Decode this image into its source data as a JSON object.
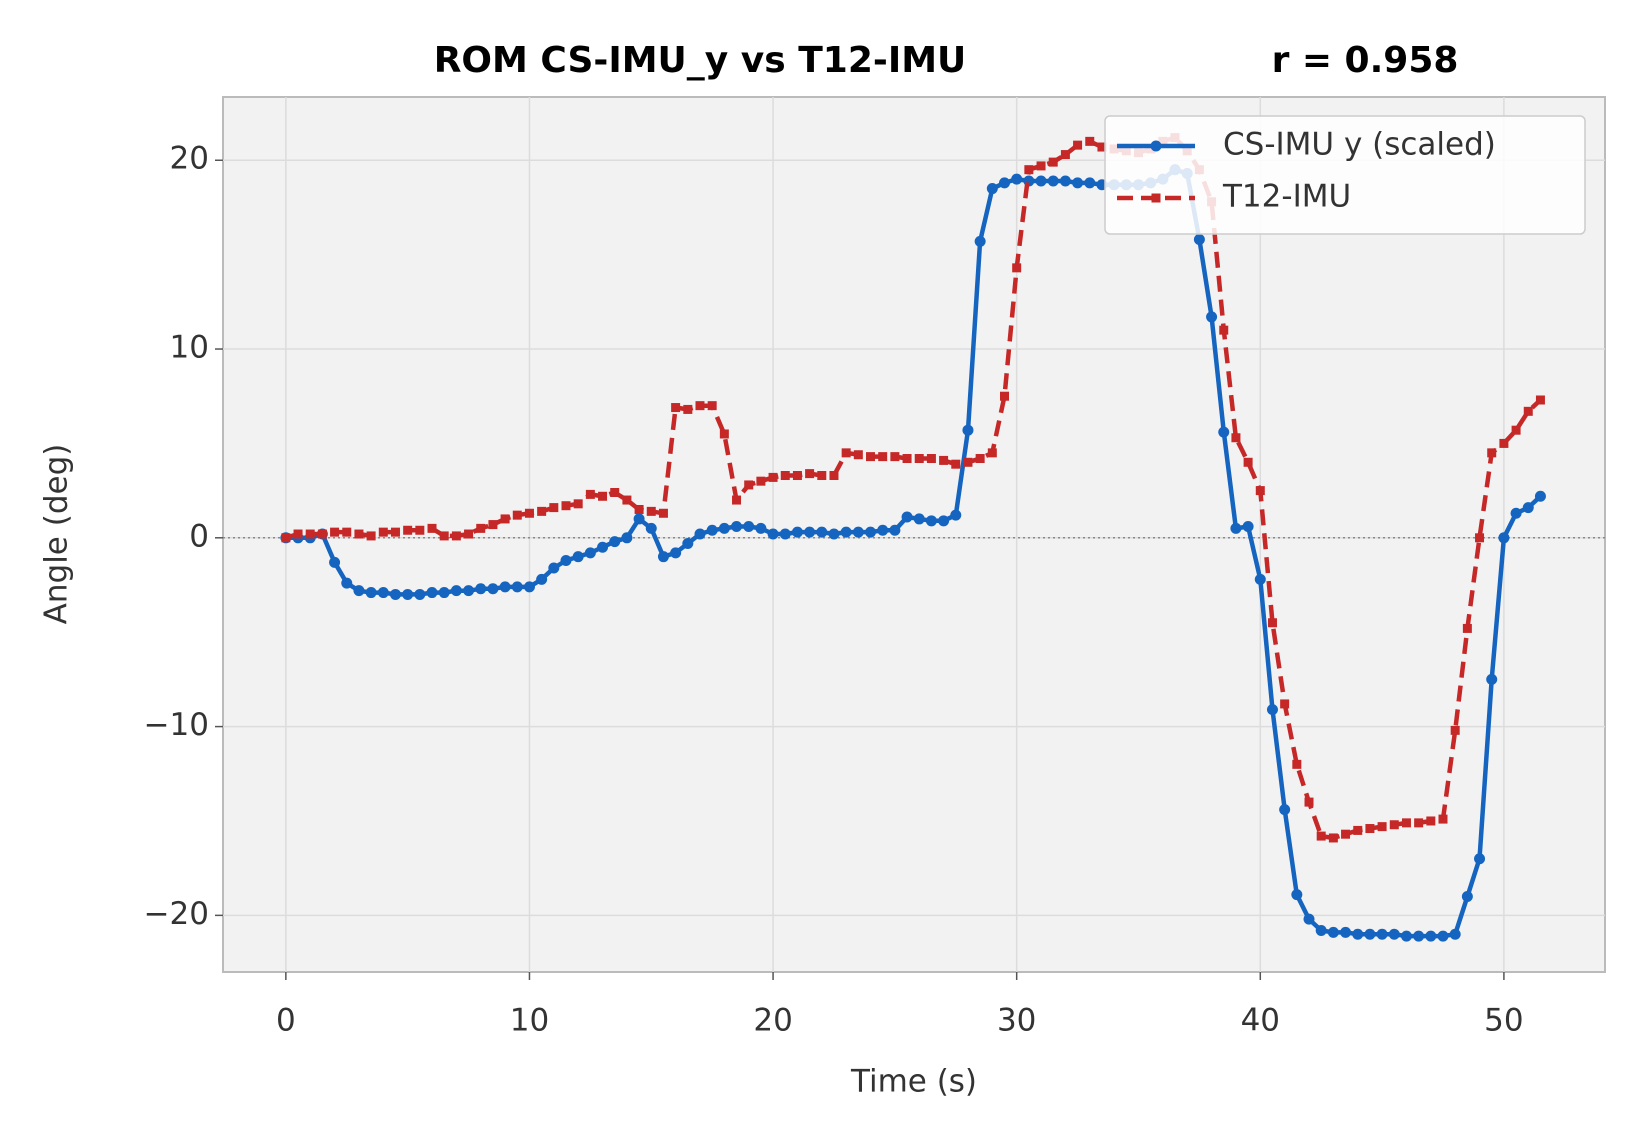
{
  "chart_data": {
    "type": "line",
    "title": "ROM  CS-IMU_y vs T12-IMU",
    "annotation": "r = 0.958",
    "xlabel": "Time (s)",
    "ylabel": "Angle (deg)",
    "x": [
      0,
      0.5,
      1,
      1.5,
      2,
      2.5,
      3,
      3.5,
      4,
      4.5,
      5,
      5.5,
      6,
      6.5,
      7,
      7.5,
      8,
      8.5,
      9,
      9.5,
      10,
      10.5,
      11,
      11.5,
      12,
      12.5,
      13,
      13.5,
      14,
      14.5,
      15,
      15.5,
      16,
      16.5,
      17,
      17.5,
      18,
      18.5,
      19,
      19.5,
      20,
      20.5,
      21,
      21.5,
      22,
      22.5,
      23,
      23.5,
      24,
      24.5,
      25,
      25.5,
      26,
      26.5,
      27,
      27.5,
      28,
      28.5,
      29,
      29.5,
      30,
      30.5,
      31,
      31.5,
      32,
      32.5,
      33,
      33.5,
      34,
      34.5,
      35,
      35.5,
      36,
      36.5,
      37,
      37.5,
      38,
      38.5,
      39,
      39.5,
      40,
      40.5,
      41,
      41.5,
      42,
      42.5,
      43,
      43.5,
      44,
      44.5,
      45,
      45.5,
      46,
      46.5,
      47,
      47.5,
      48,
      48.5,
      49,
      49.5,
      50,
      50.5,
      51,
      51.5
    ],
    "series": [
      {
        "name": "CS-IMU y (scaled)",
        "color": "#1565c0",
        "marker": "circle",
        "dash": false,
        "values": [
          0,
          0,
          0,
          0.2,
          -1.3,
          -2.4,
          -2.8,
          -2.9,
          -2.9,
          -3.0,
          -3.0,
          -3.0,
          -2.9,
          -2.9,
          -2.8,
          -2.8,
          -2.7,
          -2.7,
          -2.6,
          -2.6,
          -2.6,
          -2.2,
          -1.6,
          -1.2,
          -1.0,
          -0.8,
          -0.5,
          -0.2,
          0,
          1.0,
          0.5,
          -1.0,
          -0.8,
          -0.3,
          0.2,
          0.4,
          0.5,
          0.6,
          0.6,
          0.5,
          0.2,
          0.2,
          0.3,
          0.3,
          0.3,
          0.2,
          0.3,
          0.3,
          0.3,
          0.4,
          0.4,
          1.1,
          1.0,
          0.9,
          0.9,
          1.2,
          5.7,
          15.7,
          18.5,
          18.8,
          19.0,
          18.9,
          18.9,
          18.9,
          18.9,
          18.8,
          18.8,
          18.7,
          18.7,
          18.7,
          18.7,
          18.8,
          19.0,
          19.5,
          19.3,
          15.8,
          11.7,
          5.6,
          0.5,
          0.6,
          -2.2,
          -9.1,
          -14.4,
          -18.9,
          -20.2,
          -20.8,
          -20.9,
          -20.9,
          -21.0,
          -21.0,
          -21.0,
          -21.0,
          -21.1,
          -21.1,
          -21.1,
          -21.1,
          -21.0,
          -19.0,
          -17.0,
          -7.5,
          0,
          1.3,
          1.6,
          2.2
        ]
      },
      {
        "name": "T12-IMU",
        "color": "#c62828",
        "marker": "square",
        "dash": true,
        "values": [
          0,
          0.2,
          0.2,
          0.2,
          0.3,
          0.3,
          0.2,
          0.1,
          0.3,
          0.3,
          0.4,
          0.4,
          0.5,
          0.1,
          0.1,
          0.2,
          0.5,
          0.7,
          1.0,
          1.2,
          1.3,
          1.4,
          1.6,
          1.7,
          1.8,
          2.3,
          2.2,
          2.4,
          2.0,
          1.5,
          1.4,
          1.3,
          6.9,
          6.8,
          7.0,
          7.0,
          5.5,
          2.0,
          2.8,
          3.0,
          3.2,
          3.3,
          3.3,
          3.4,
          3.3,
          3.3,
          4.5,
          4.4,
          4.3,
          4.3,
          4.3,
          4.2,
          4.2,
          4.2,
          4.1,
          3.9,
          4.0,
          4.2,
          4.5,
          7.5,
          14.3,
          19.5,
          19.7,
          19.9,
          20.3,
          20.8,
          21.0,
          20.7,
          20.6,
          20.5,
          20.4,
          20.6,
          21.0,
          21.2,
          20.5,
          19.5,
          17.8,
          11.0,
          5.3,
          4.0,
          2.5,
          -4.5,
          -8.8,
          -12.0,
          -14.0,
          -15.8,
          -15.9,
          -15.7,
          -15.5,
          -15.4,
          -15.3,
          -15.2,
          -15.1,
          -15.1,
          -15.0,
          -14.9,
          -10.2,
          -4.8,
          0.0,
          4.5,
          5.0,
          5.7,
          6.7,
          7.3
        ]
      }
    ],
    "xlim": [
      -2.58,
      54.15
    ],
    "ylim": [
      -23.0,
      23.35
    ],
    "xticks": [
      0,
      10,
      20,
      30,
      40,
      50
    ],
    "yticks": [
      {
        "value": -20,
        "label": "−20"
      },
      {
        "value": -10,
        "label": "−10"
      },
      0,
      10,
      20
    ],
    "hline": 0,
    "grid": true,
    "legend": "upper right"
  }
}
